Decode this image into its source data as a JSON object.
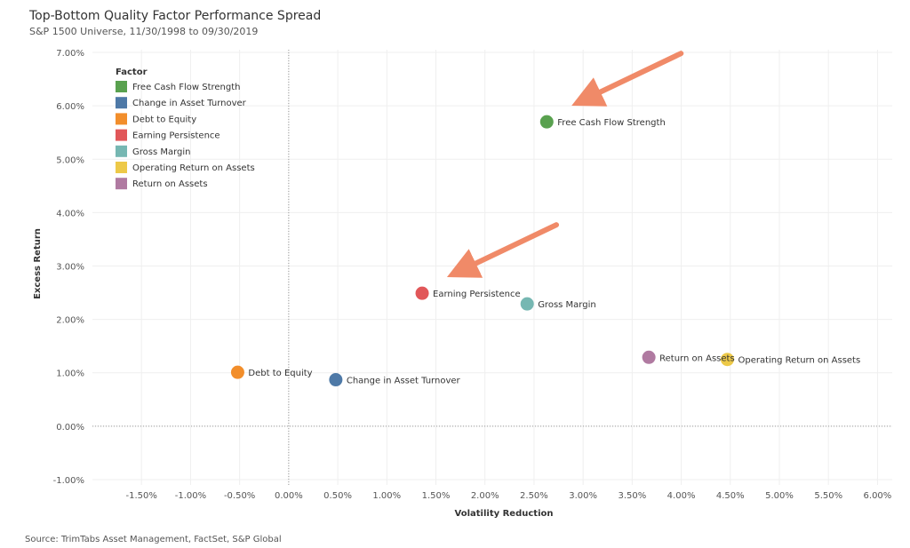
{
  "chart_data": {
    "type": "scatter",
    "title": "Top-Bottom Quality Factor Performance Spread",
    "subtitle": "S&P 1500 Universe, 11/30/1998 to 09/30/2019",
    "xlabel": "Volatility Reduction",
    "ylabel": "Excess Return",
    "xlim": [
      -2.0,
      6.15
    ],
    "ylim": [
      -1.1,
      7.05
    ],
    "x_ticks": [
      -1.5,
      -1.0,
      -0.5,
      0.0,
      0.5,
      1.0,
      1.5,
      2.0,
      2.5,
      3.0,
      3.5,
      4.0,
      4.5,
      5.0,
      5.5,
      6.0
    ],
    "x_tick_labels": [
      "-1.50%",
      "-1.00%",
      "-0.50%",
      "0.00%",
      "0.50%",
      "1.00%",
      "1.50%",
      "2.00%",
      "2.50%",
      "3.00%",
      "3.50%",
      "4.00%",
      "4.50%",
      "5.00%",
      "5.50%",
      "6.00%"
    ],
    "y_ticks": [
      -1.0,
      0.0,
      1.0,
      2.0,
      3.0,
      4.0,
      5.0,
      6.0,
      7.0
    ],
    "y_tick_labels": [
      "-1.00%",
      "0.00%",
      "1.00%",
      "2.00%",
      "3.00%",
      "4.00%",
      "5.00%",
      "6.00%",
      "7.00%"
    ],
    "grid": true,
    "legend_title": "Factor",
    "legend_position": "top-left",
    "series": [
      {
        "name": "Free Cash Flow Strength",
        "color": "#59A14F",
        "x": 2.63,
        "y": 5.7
      },
      {
        "name": "Change in Asset Turnover",
        "color": "#4E79A7",
        "x": 0.48,
        "y": 0.87
      },
      {
        "name": "Debt to Equity",
        "color": "#F28E2B",
        "x": -0.52,
        "y": 1.01
      },
      {
        "name": "Earning Persistence",
        "color": "#E15759",
        "x": 1.36,
        "y": 2.49
      },
      {
        "name": "Gross Margin",
        "color": "#76B7B2",
        "x": 2.43,
        "y": 2.29
      },
      {
        "name": "Operating Return on Assets",
        "color": "#EDC948",
        "x": 4.47,
        "y": 1.25
      },
      {
        "name": "Return on Assets",
        "color": "#B07AA1",
        "x": 3.67,
        "y": 1.29
      }
    ],
    "annotation_arrows": [
      {
        "target": "Free Cash Flow Strength",
        "color": "#F08A68"
      },
      {
        "target": "Earning Persistence",
        "color": "#F08A68"
      }
    ]
  },
  "source": "Source: TrimTabs Asset Management, FactSet, S&P Global"
}
